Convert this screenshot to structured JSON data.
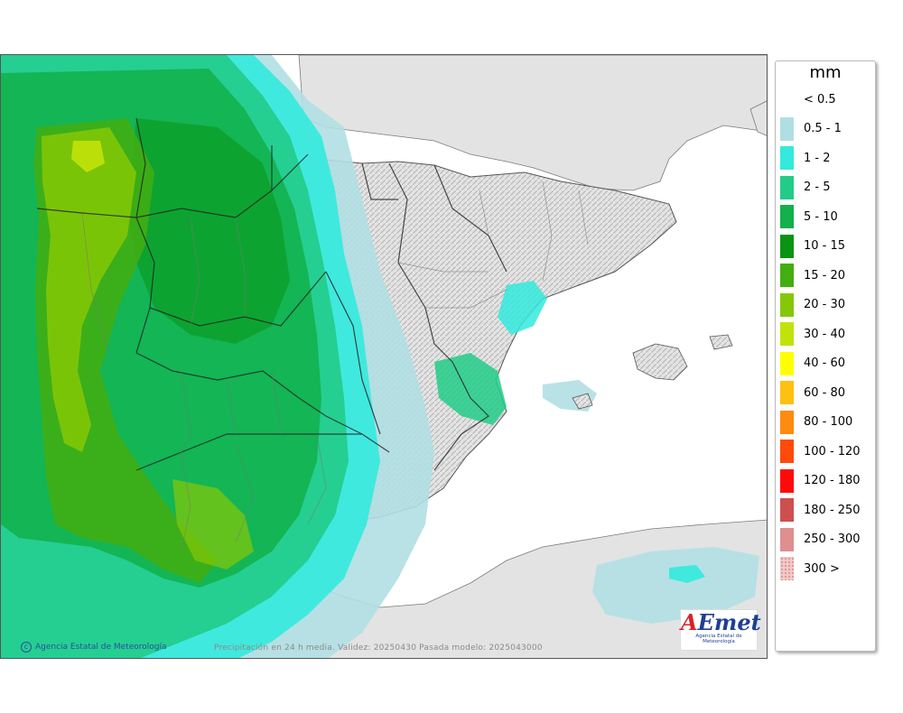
{
  "map": {
    "credit": "Agencia Estatal de Meteorología",
    "validity": "Precipitación en 24 h media. Validez: 20250430 Pasada modelo: 2025043000",
    "logo_text": "AEmet",
    "logo_subtitle": "Agencia Estatal de Meteorología"
  },
  "legend": {
    "unit": "mm",
    "items": [
      {
        "label": "< 0.5",
        "color": "#ffffff"
      },
      {
        "label": "0.5 - 1",
        "color": "#b0dfe3"
      },
      {
        "label": "1 - 2",
        "color": "#33eadd"
      },
      {
        "label": "2 - 5",
        "color": "#22cc88"
      },
      {
        "label": "5 - 10",
        "color": "#11b04a"
      },
      {
        "label": "10 - 15",
        "color": "#0a9414"
      },
      {
        "label": "15 - 20",
        "color": "#43ae10"
      },
      {
        "label": "20 - 30",
        "color": "#86c806"
      },
      {
        "label": "30 - 40",
        "color": "#c2e30a"
      },
      {
        "label": "40 - 60",
        "color": "#ffff00"
      },
      {
        "label": "60 - 80",
        "color": "#ffc010"
      },
      {
        "label": "80 - 100",
        "color": "#ff8a10"
      },
      {
        "label": "100 - 120",
        "color": "#ff4a0a"
      },
      {
        "label": "120 - 180",
        "color": "#ff0a0a"
      },
      {
        "label": "180 - 250",
        "color": "#cf4f4f"
      },
      {
        "label": "250 - 300",
        "color": "#e08f8f"
      },
      {
        "label": "300 >",
        "color": "#f2c8c8"
      }
    ]
  }
}
